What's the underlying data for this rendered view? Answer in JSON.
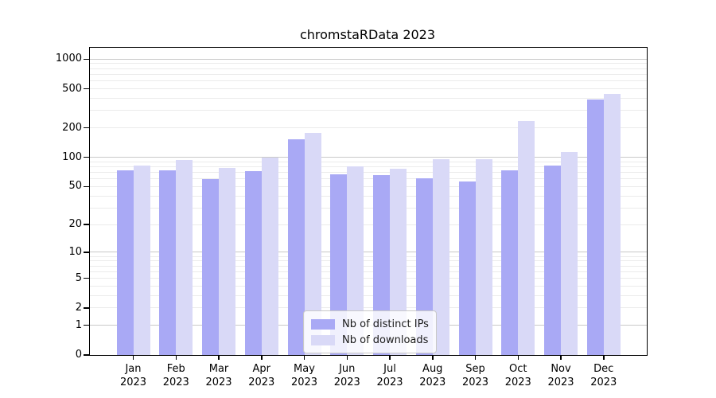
{
  "title": "chromstaRData 2023",
  "chart_data": {
    "type": "bar",
    "title": "chromstaRData 2023",
    "categories": [
      "Jan",
      "Feb",
      "Mar",
      "Apr",
      "May",
      "Jun",
      "Jul",
      "Aug",
      "Sep",
      "Oct",
      "Nov",
      "Dec"
    ],
    "year": "2023",
    "series": [
      {
        "name": "Nb of distinct IPs",
        "color": "#a9a9f5",
        "values": [
          73,
          74,
          60,
          72,
          153,
          67,
          66,
          61,
          56,
          74,
          82,
          390
        ]
      },
      {
        "name": "Nb of downloads",
        "color": "#d9d9f7",
        "values": [
          83,
          94,
          78,
          100,
          178,
          81,
          76,
          95,
          95,
          234,
          114,
          440
        ]
      }
    ],
    "y_axis": {
      "scale": "log1p",
      "ticks": [
        1000,
        500,
        200,
        100,
        50,
        20,
        10,
        5,
        2,
        1,
        0
      ],
      "grid_major": [
        1,
        10,
        100,
        1000
      ],
      "grid_minor_decades": [
        1,
        10,
        100
      ],
      "ylim_top": 1305
    },
    "legend": {
      "position": "lower-center-inside"
    },
    "grid": "on"
  }
}
